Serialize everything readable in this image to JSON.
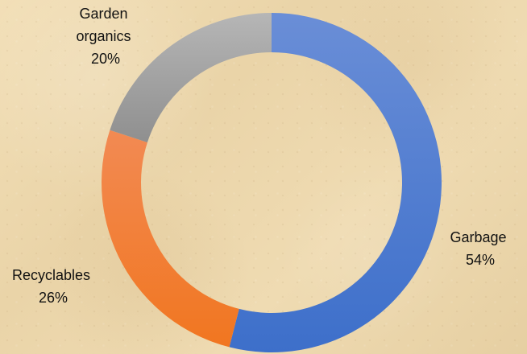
{
  "chart_data": {
    "type": "pie",
    "categories": [
      "Garbage",
      "Recyclables",
      "Garden organics"
    ],
    "values": [
      54,
      26,
      20
    ],
    "labels": [
      "Garbage",
      "Recyclables",
      "Garden organics"
    ],
    "value_labels": [
      "54%",
      "26%",
      "20%"
    ],
    "colors": {
      "Garbage": "#4a78cf",
      "Recyclables": "#f07a2c",
      "Garden organics": "#a3a3a3"
    }
  }
}
